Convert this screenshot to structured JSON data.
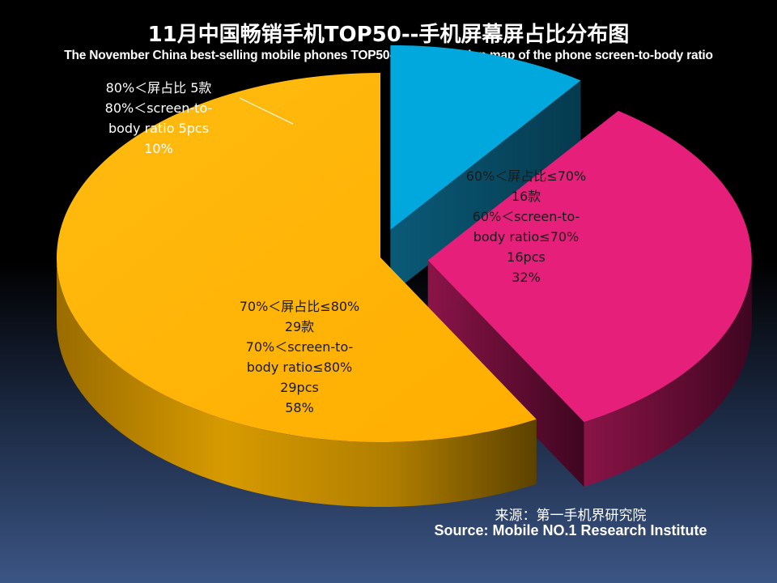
{
  "title_cn": "11月中国畅销手机TOP50--手机屏幕屏占比分布图",
  "title_en": "The November China best-selling mobile phones TOP50--the distribution map of the phone screen-to-body ratio",
  "source_cn": "来源：第一手机界研究院",
  "source_en": "Source: Mobile NO.1 Research Institute",
  "colors": {
    "blue": "#00a8de",
    "pink": "#e61f7a",
    "orange": "#ffb400"
  },
  "chart_data": {
    "type": "pie",
    "style": "3d-exploded",
    "categories": [
      "80%＜屏占比",
      "60%＜屏占比≤70%",
      "70%＜屏占比≤80%"
    ],
    "values": [
      5,
      16,
      29
    ],
    "percentages": [
      10,
      32,
      58
    ],
    "slice_labels": [
      [
        "80%＜屏占比  5款",
        "80%＜screen-to-",
        "body ratio  5pcs",
        "10%"
      ],
      [
        "60%＜屏占比≤70%",
        "16款",
        "60%＜screen-to-",
        "body ratio≤70%",
        "16pcs",
        "32%"
      ],
      [
        "70%＜屏占比≤80%",
        "29款",
        "70%＜screen-to-",
        "body ratio≤80%",
        "29pcs",
        "58%"
      ]
    ]
  }
}
